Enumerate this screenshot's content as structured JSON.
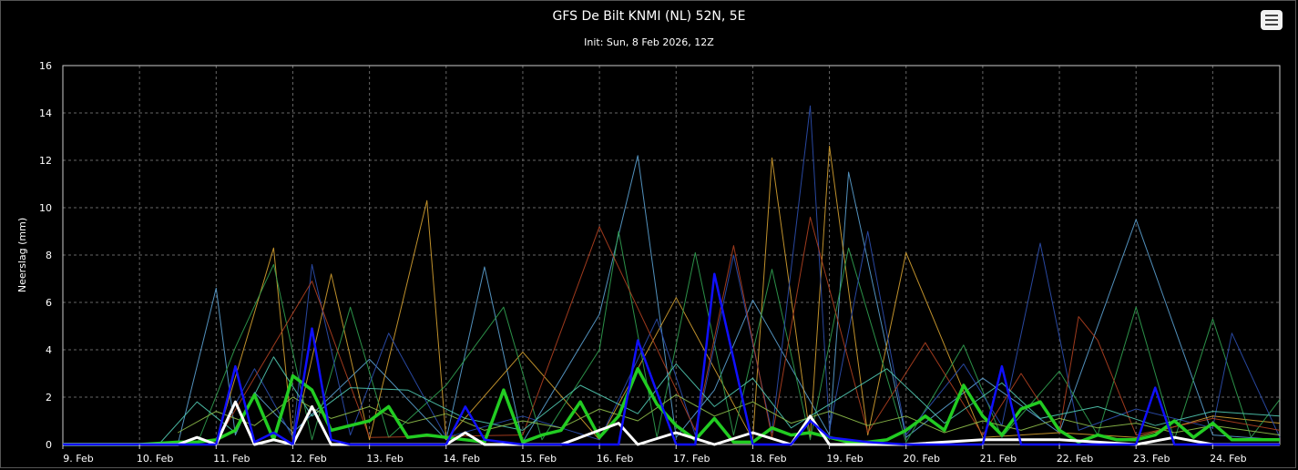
{
  "chart_data": {
    "type": "line",
    "title": "GFS De Bilt KNMI (NL) 52N, 5E",
    "subtitle": "Init: Sun, 8 Feb 2026, 12Z",
    "ylabel": "Neerslag (mm)",
    "xlabel": "",
    "ylim": [
      0,
      16
    ],
    "y_ticks": [
      0,
      2,
      4,
      6,
      8,
      10,
      12,
      14,
      16
    ],
    "xlim": [
      "2026-02-09T00:00",
      "2026-02-24T21:00"
    ],
    "x_tick_labels": [
      "9. Feb",
      "10. Feb",
      "11. Feb",
      "12. Feb",
      "13. Feb",
      "14. Feb",
      "15. Feb",
      "16. Feb",
      "17. Feb",
      "18. Feb",
      "19. Feb",
      "20. Feb",
      "21. Feb",
      "22. Feb",
      "23. Feb",
      "24. Feb"
    ],
    "grid": true,
    "legend": "none",
    "colors": {
      "background": "#000000",
      "grid": "#666666",
      "axis": "#cccccc"
    },
    "series": [
      {
        "color": "#22cc22",
        "width": 3.5,
        "role": "mean",
        "x": [
          "2026-02-09T00:00",
          "2026-02-10T00:00",
          "2026-02-10T12:00",
          "2026-02-10T18:00",
          "2026-02-11T00:00",
          "2026-02-11T06:00",
          "2026-02-11T12:00",
          "2026-02-11T18:00",
          "2026-02-12T00:00",
          "2026-02-12T06:00",
          "2026-02-12T12:00",
          "2026-02-12T18:00",
          "2026-02-13T00:00",
          "2026-02-13T06:00",
          "2026-02-13T12:00",
          "2026-02-13T18:00",
          "2026-02-14T00:00",
          "2026-02-14T06:00",
          "2026-02-14T12:00",
          "2026-02-14T18:00",
          "2026-02-15T00:00",
          "2026-02-15T06:00",
          "2026-02-15T12:00",
          "2026-02-15T18:00",
          "2026-02-16T00:00",
          "2026-02-16T06:00",
          "2026-02-16T12:00",
          "2026-02-16T18:00",
          "2026-02-17T00:00",
          "2026-02-17T06:00",
          "2026-02-17T12:00",
          "2026-02-17T18:00",
          "2026-02-18T00:00",
          "2026-02-18T06:00",
          "2026-02-18T12:00",
          "2026-02-18T18:00",
          "2026-02-19T00:00",
          "2026-02-19T06:00",
          "2026-02-19T12:00",
          "2026-02-19T18:00",
          "2026-02-20T00:00",
          "2026-02-20T06:00",
          "2026-02-20T12:00",
          "2026-02-20T18:00",
          "2026-02-21T00:00",
          "2026-02-21T06:00",
          "2026-02-21T12:00",
          "2026-02-21T18:00",
          "2026-02-22T00:00",
          "2026-02-22T06:00",
          "2026-02-22T12:00",
          "2026-02-22T18:00",
          "2026-02-23T00:00",
          "2026-02-23T06:00",
          "2026-02-23T12:00",
          "2026-02-23T18:00",
          "2026-02-24T00:00",
          "2026-02-24T06:00",
          "2026-02-24T12:00",
          "2026-02-24T21:00"
        ],
        "y": [
          0,
          0,
          0.1,
          0.1,
          0.2,
          0.6,
          2.1,
          0.2,
          2.9,
          2.3,
          0.6,
          0.8,
          1.0,
          1.6,
          0.3,
          0.4,
          0.3,
          0.2,
          0.1,
          2.3,
          0.1,
          0.4,
          0.6,
          1.8,
          0.3,
          1.2,
          3.2,
          1.7,
          0.8,
          0.2,
          1.1,
          0.1,
          0.1,
          0.7,
          0.4,
          0.5,
          0.3,
          0.1,
          0.1,
          0.2,
          0.6,
          1.2,
          0.6,
          2.5,
          1.2,
          0.4,
          1.5,
          1.8,
          0.6,
          0.1,
          0.4,
          0.2,
          0.2,
          0.4,
          1.0,
          0.3,
          0.9,
          0.2,
          0.2,
          0.2
        ]
      },
      {
        "color": "#ffffff",
        "width": 3,
        "role": "control",
        "x": [
          "2026-02-09T00:00",
          "2026-02-10T00:00",
          "2026-02-10T12:00",
          "2026-02-10T18:00",
          "2026-02-11T00:00",
          "2026-02-11T06:00",
          "2026-02-11T12:00",
          "2026-02-11T18:00",
          "2026-02-12T00:00",
          "2026-02-12T06:00",
          "2026-02-12T12:00",
          "2026-02-12T18:00",
          "2026-02-13T00:00",
          "2026-02-14T00:00",
          "2026-02-14T06:00",
          "2026-02-14T12:00",
          "2026-02-15T00:00",
          "2026-02-15T12:00",
          "2026-02-16T00:00",
          "2026-02-16T06:00",
          "2026-02-16T12:00",
          "2026-02-17T00:00",
          "2026-02-17T12:00",
          "2026-02-18T00:00",
          "2026-02-18T12:00",
          "2026-02-18T18:00",
          "2026-02-19T00:00",
          "2026-02-19T12:00",
          "2026-02-20T00:00",
          "2026-02-21T00:00",
          "2026-02-22T00:00",
          "2026-02-23T00:00",
          "2026-02-23T12:00",
          "2026-02-24T00:00",
          "2026-02-24T21:00"
        ],
        "y": [
          0,
          0,
          0,
          0.3,
          0,
          1.8,
          0,
          0.2,
          0,
          1.6,
          0,
          0,
          0,
          0,
          0.5,
          0,
          0,
          0,
          0.6,
          0.9,
          0,
          0.5,
          0,
          0.5,
          0,
          1.2,
          0,
          0,
          0,
          0.2,
          0.2,
          0,
          0.3,
          0,
          0
        ]
      },
      {
        "color": "#1010ff",
        "width": 2.5,
        "role": "operational",
        "x": [
          "2026-02-09T00:00",
          "2026-02-10T00:00",
          "2026-02-11T00:00",
          "2026-02-11T06:00",
          "2026-02-11T12:00",
          "2026-02-11T18:00",
          "2026-02-12T00:00",
          "2026-02-12T06:00",
          "2026-02-12T12:00",
          "2026-02-12T18:00",
          "2026-02-13T00:00",
          "2026-02-13T12:00",
          "2026-02-14T00:00",
          "2026-02-14T06:00",
          "2026-02-14T12:00",
          "2026-02-15T00:00",
          "2026-02-16T00:00",
          "2026-02-16T06:00",
          "2026-02-16T12:00",
          "2026-02-17T00:00",
          "2026-02-17T06:00",
          "2026-02-17T12:00",
          "2026-02-18T00:00",
          "2026-02-18T12:00",
          "2026-02-18T18:00",
          "2026-02-19T00:00",
          "2026-02-19T12:00",
          "2026-02-20T00:00",
          "2026-02-20T12:00",
          "2026-02-21T00:00",
          "2026-02-21T06:00",
          "2026-02-21T12:00",
          "2026-02-22T00:00",
          "2026-02-22T12:00",
          "2026-02-23T00:00",
          "2026-02-23T06:00",
          "2026-02-23T12:00",
          "2026-02-24T00:00",
          "2026-02-24T21:00"
        ],
        "y": [
          0,
          0,
          0,
          3.3,
          0.1,
          0.5,
          0,
          4.9,
          0.2,
          0,
          0,
          0,
          0,
          1.6,
          0.2,
          0,
          0,
          0,
          4.4,
          0,
          0,
          7.2,
          0,
          0,
          1.0,
          0.3,
          0.1,
          0,
          0,
          0,
          3.3,
          0,
          0,
          0,
          0,
          2.4,
          0,
          0,
          0
        ]
      },
      {
        "color": "#5aa0d0",
        "width": 1,
        "role": "member",
        "x": [
          "2026-02-10T12:00",
          "2026-02-11T00:00",
          "2026-02-11T06:00",
          "2026-02-11T12:00",
          "2026-02-12T00:00",
          "2026-02-13T00:00",
          "2026-02-14T00:00",
          "2026-02-14T12:00",
          "2026-02-15T00:00",
          "2026-02-16T00:00",
          "2026-02-16T12:00",
          "2026-02-17T00:00",
          "2026-02-17T12:00",
          "2026-02-18T00:00",
          "2026-02-19T00:00",
          "2026-02-19T06:00",
          "2026-02-20T00:00",
          "2026-02-21T00:00",
          "2026-02-22T00:00",
          "2026-02-23T00:00",
          "2026-02-24T00:00",
          "2026-02-24T21:00"
        ],
        "y": [
          0,
          6.6,
          0.4,
          2.2,
          0.5,
          3.6,
          0.2,
          7.5,
          0.1,
          5.5,
          12.2,
          0.3,
          2.3,
          6.1,
          0.4,
          11.5,
          0.3,
          2.8,
          0.5,
          9.5,
          0.4,
          0.2
        ]
      },
      {
        "color": "#d4a030",
        "width": 1,
        "role": "member",
        "x": [
          "2026-02-11T00:00",
          "2026-02-11T18:00",
          "2026-02-12T00:00",
          "2026-02-12T12:00",
          "2026-02-13T00:00",
          "2026-02-13T18:00",
          "2026-02-14T00:00",
          "2026-02-15T00:00",
          "2026-02-16T00:00",
          "2026-02-17T00:00",
          "2026-02-18T00:00",
          "2026-02-18T06:00",
          "2026-02-18T18:00",
          "2026-02-19T00:00",
          "2026-02-19T12:00",
          "2026-02-20T00:00",
          "2026-02-21T00:00",
          "2026-02-22T00:00",
          "2026-02-23T00:00",
          "2026-02-24T00:00",
          "2026-02-24T21:00"
        ],
        "y": [
          0.1,
          8.3,
          0.1,
          7.2,
          0.2,
          10.3,
          0.2,
          3.9,
          0.2,
          6.2,
          0.2,
          12.1,
          0.3,
          12.6,
          0.4,
          8.1,
          0.3,
          0.5,
          0.3,
          1.2,
          0.9
        ]
      },
      {
        "color": "#30a050",
        "width": 1,
        "role": "member",
        "x": [
          "2026-02-10T18:00",
          "2026-02-11T06:00",
          "2026-02-11T18:00",
          "2026-02-12T06:00",
          "2026-02-12T18:00",
          "2026-02-13T06:00",
          "2026-02-14T00:00",
          "2026-02-14T18:00",
          "2026-02-15T06:00",
          "2026-02-16T00:00",
          "2026-02-16T06:00",
          "2026-02-16T18:00",
          "2026-02-17T06:00",
          "2026-02-17T18:00",
          "2026-02-18T06:00",
          "2026-02-18T18:00",
          "2026-02-19T06:00",
          "2026-02-20T00:00",
          "2026-02-20T18:00",
          "2026-02-21T06:00",
          "2026-02-22T00:00",
          "2026-02-22T12:00",
          "2026-02-23T00:00",
          "2026-02-23T12:00",
          "2026-02-24T00:00",
          "2026-02-24T12:00",
          "2026-02-24T21:00"
        ],
        "y": [
          0,
          4.1,
          7.6,
          0.2,
          5.8,
          0.3,
          2.5,
          5.8,
          0.2,
          4.0,
          9.0,
          0.3,
          8.1,
          0.4,
          7.4,
          0.2,
          8.3,
          0.1,
          4.2,
          0.3,
          3.1,
          0.4,
          5.8,
          0.2,
          5.3,
          0.3,
          1.9
        ]
      },
      {
        "color": "#2c4fb0",
        "width": 1,
        "role": "member",
        "x": [
          "2026-02-11T00:00",
          "2026-02-11T12:00",
          "2026-02-12T00:00",
          "2026-02-12T06:00",
          "2026-02-12T18:00",
          "2026-02-13T06:00",
          "2026-02-14T00:00",
          "2026-02-15T00:00",
          "2026-02-16T00:00",
          "2026-02-16T18:00",
          "2026-02-17T06:00",
          "2026-02-17T18:00",
          "2026-02-18T06:00",
          "2026-02-18T18:00",
          "2026-02-19T00:00",
          "2026-02-19T12:00",
          "2026-02-20T00:00",
          "2026-02-20T18:00",
          "2026-02-21T06:00",
          "2026-02-21T18:00",
          "2026-02-22T06:00",
          "2026-02-23T00:00",
          "2026-02-24T00:00",
          "2026-02-24T06:00",
          "2026-02-24T21:00"
        ],
        "y": [
          0.2,
          3.2,
          0.3,
          7.6,
          0.4,
          4.7,
          0.3,
          1.2,
          0.2,
          5.3,
          0.4,
          8.0,
          0.5,
          14.3,
          0.6,
          9.0,
          0.4,
          3.4,
          0.8,
          8.5,
          0.6,
          1.5,
          0.7,
          4.7,
          0.3
        ]
      },
      {
        "color": "#b04020",
        "width": 1,
        "role": "member",
        "x": [
          "2026-02-11T00:00",
          "2026-02-12T06:00",
          "2026-02-13T00:00",
          "2026-02-15T00:00",
          "2026-02-16T00:00",
          "2026-02-17T06:00",
          "2026-02-17T18:00",
          "2026-02-18T06:00",
          "2026-02-18T18:00",
          "2026-02-19T12:00",
          "2026-02-20T06:00",
          "2026-02-21T00:00",
          "2026-02-21T12:00",
          "2026-02-22T00:00",
          "2026-02-22T06:00",
          "2026-02-22T12:00",
          "2026-02-23T00:00",
          "2026-02-24T00:00",
          "2026-02-24T21:00"
        ],
        "y": [
          0.1,
          6.9,
          0.3,
          0.4,
          9.2,
          0.6,
          8.4,
          0.3,
          9.6,
          0.5,
          4.3,
          0.4,
          3.0,
          0.5,
          5.4,
          4.4,
          0.4,
          1.1,
          0.6
        ]
      },
      {
        "color": "#50c8b0",
        "width": 1,
        "role": "member",
        "x": [
          "2026-02-10T06:00",
          "2026-02-10T18:00",
          "2026-02-11T06:00",
          "2026-02-11T18:00",
          "2026-02-12T06:00",
          "2026-02-12T18:00",
          "2026-02-13T12:00",
          "2026-02-14T06:00",
          "2026-02-15T00:00",
          "2026-02-15T18:00",
          "2026-02-16T12:00",
          "2026-02-17T00:00",
          "2026-02-17T12:00",
          "2026-02-18T00:00",
          "2026-02-18T12:00",
          "2026-02-19T00:00",
          "2026-02-19T18:00",
          "2026-02-20T12:00",
          "2026-02-21T06:00",
          "2026-02-21T18:00",
          "2026-02-22T12:00",
          "2026-02-23T06:00",
          "2026-02-24T00:00",
          "2026-02-24T21:00"
        ],
        "y": [
          0,
          1.8,
          0.5,
          3.7,
          1.2,
          2.4,
          2.3,
          1.1,
          0.6,
          2.5,
          1.3,
          3.4,
          1.6,
          2.8,
          0.7,
          1.7,
          3.2,
          0.9,
          2.6,
          1.1,
          1.6,
          0.8,
          1.4,
          1.2
        ]
      },
      {
        "color": "#8fbf4a",
        "width": 1,
        "role": "member",
        "x": [
          "2026-02-10T12:00",
          "2026-02-11T00:00",
          "2026-02-11T12:00",
          "2026-02-12T00:00",
          "2026-02-12T12:00",
          "2026-02-13T00:00",
          "2026-02-13T12:00",
          "2026-02-14T00:00",
          "2026-02-14T12:00",
          "2026-02-15T00:00",
          "2026-02-15T12:00",
          "2026-02-16T00:00",
          "2026-02-16T12:00",
          "2026-02-17T00:00",
          "2026-02-17T12:00",
          "2026-02-18T00:00",
          "2026-02-18T12:00",
          "2026-02-19T00:00",
          "2026-02-19T12:00",
          "2026-02-20T00:00",
          "2026-02-20T12:00",
          "2026-02-21T00:00",
          "2026-02-21T12:00",
          "2026-02-22T00:00",
          "2026-02-22T12:00",
          "2026-02-23T00:00",
          "2026-02-23T12:00",
          "2026-02-24T00:00",
          "2026-02-24T21:00"
        ],
        "y": [
          0.5,
          1.4,
          0.8,
          2.0,
          1.1,
          1.6,
          0.9,
          1.3,
          0.6,
          1.0,
          0.7,
          1.5,
          1.0,
          2.1,
          1.2,
          1.8,
          0.9,
          1.4,
          0.8,
          1.2,
          0.5,
          1.0,
          0.6,
          1.1,
          0.7,
          0.9,
          0.5,
          0.8,
          0.4
        ]
      }
    ]
  }
}
